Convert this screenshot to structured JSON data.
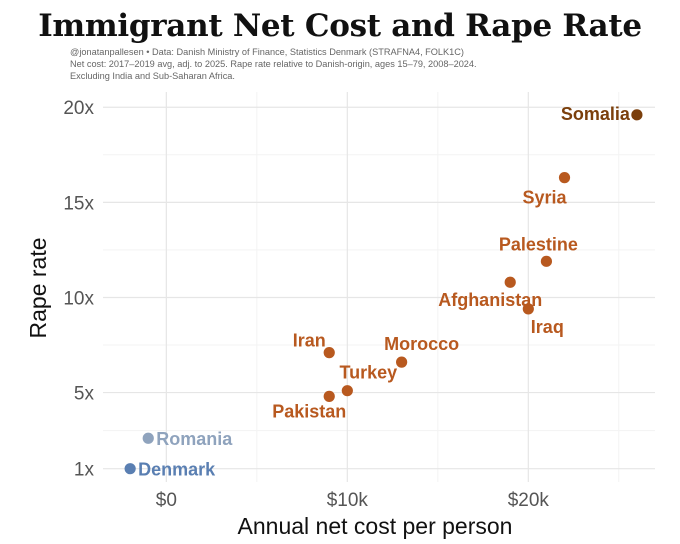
{
  "chart_data": {
    "type": "scatter",
    "title": "Immigrant Net Cost and Rape Rate",
    "subtitle_lines": [
      "@jonatanpallesen • Data: Danish Ministry of Finance, Statistics Denmark (STRAFNA4, FOLK1C)",
      "Net cost: 2017–2019 avg, adj. to 2025. Rape rate relative to Danish-origin, ages 15–79, 2008–2024.",
      "Excluding India and Sub-Saharan Africa."
    ],
    "xlabel": "Annual net cost per person",
    "ylabel": "Rape rate",
    "xlim": [
      -3500,
      27000
    ],
    "ylim": [
      0.3,
      20.8
    ],
    "x_ticks": [
      {
        "value": 0,
        "label": "$0"
      },
      {
        "value": 10000,
        "label": "$10k"
      },
      {
        "value": 20000,
        "label": "$20k"
      }
    ],
    "y_ticks": [
      {
        "value": 1,
        "label": "1x"
      },
      {
        "value": 5,
        "label": "5x"
      },
      {
        "value": 10,
        "label": "10x"
      },
      {
        "value": 15,
        "label": "15x"
      },
      {
        "value": 20,
        "label": "20x"
      }
    ],
    "grid": true,
    "legend": "none",
    "points": [
      {
        "label": "Somalia",
        "x": 26000,
        "y": 19.6,
        "color": "#7b3f0c",
        "label_pos": "left"
      },
      {
        "label": "Syria",
        "x": 22000,
        "y": 16.3,
        "color": "#b8591f",
        "label_pos": "below-left"
      },
      {
        "label": "Palestine",
        "x": 21000,
        "y": 11.9,
        "color": "#b8591f",
        "label_pos": "above"
      },
      {
        "label": "Afghanistan",
        "x": 19000,
        "y": 10.8,
        "color": "#b8591f",
        "label_pos": "below-left"
      },
      {
        "label": "Iraq",
        "x": 20000,
        "y": 9.4,
        "color": "#b8591f",
        "label_pos": "below-right"
      },
      {
        "label": "Morocco",
        "x": 13000,
        "y": 6.6,
        "color": "#b8591f",
        "label_pos": "above"
      },
      {
        "label": "Iran",
        "x": 9000,
        "y": 7.1,
        "color": "#b8591f",
        "label_pos": "above-left"
      },
      {
        "label": "Turkey",
        "x": 10000,
        "y": 5.1,
        "color": "#b8591f",
        "label_pos": "above-right"
      },
      {
        "label": "Pakistan",
        "x": 9000,
        "y": 4.8,
        "color": "#b8591f",
        "label_pos": "below-left"
      },
      {
        "label": "Romania",
        "x": -1000,
        "y": 2.6,
        "color": "#8fa3bd",
        "label_pos": "right"
      },
      {
        "label": "Denmark",
        "x": -2000,
        "y": 1.0,
        "color": "#5a7fb2",
        "label_pos": "right"
      }
    ]
  }
}
